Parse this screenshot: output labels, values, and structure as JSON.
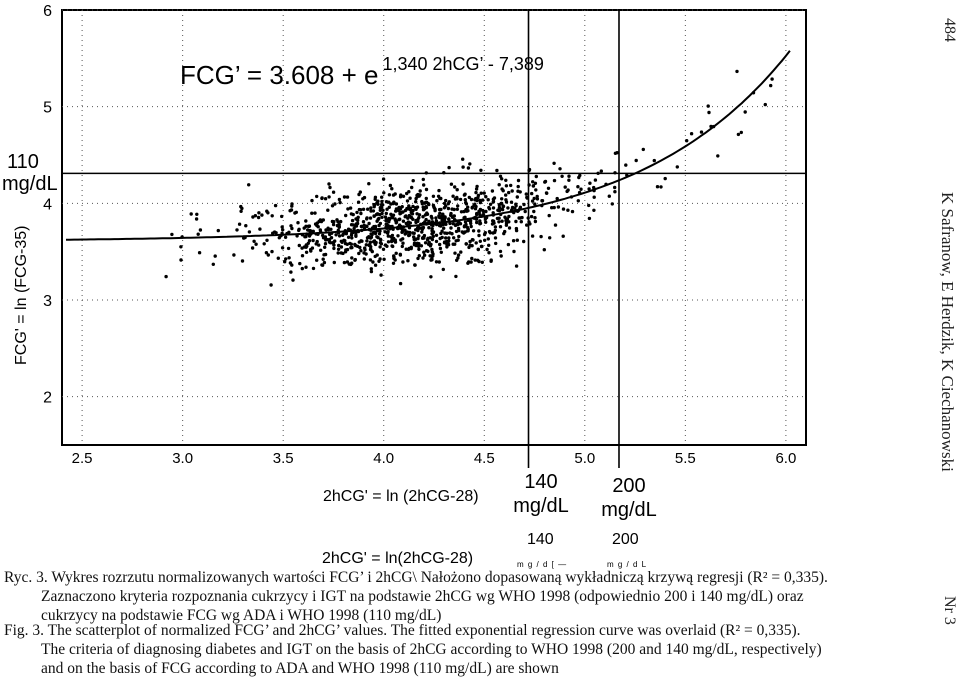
{
  "chart_data": {
    "type": "scatter",
    "formula": {
      "left": "FCG’ = 3.608 + e",
      "exponent": "1,340  2hCG’ - 7,389"
    },
    "xlabel": "2hCG' = ln (2hCG-28)",
    "ylabel": "FCG' = ln (FCG-35)",
    "xlim": [
      2.4,
      6.1
    ],
    "ylim": [
      1.5,
      6.0
    ],
    "x_ticks": [
      "2.5",
      "3.0",
      "3.5",
      "4.0",
      "4.5",
      "5.0",
      "5.5",
      "6.0"
    ],
    "y_ticks": [
      "2",
      "3",
      "4",
      "5",
      "6"
    ],
    "hline": {
      "y": 4.31,
      "label_top": "110",
      "label_bottom": "mg/dL"
    },
    "vlines": [
      {
        "x": 4.72,
        "label_top": "140",
        "label_bottom": "mg/dL"
      },
      {
        "x": 5.17,
        "label_top": "200",
        "label_bottom": "mg/dL"
      }
    ],
    "regression": {
      "a": 3.608,
      "b": 1.34,
      "c": -7.389
    },
    "point_count": 1100,
    "seed": 7,
    "grid": "dotted"
  },
  "paper": {
    "page_number": "484",
    "running_head": "K Safranow, E Herdzik, K Ciechanowski",
    "issue": "Nr 3",
    "ghost_values": [
      "140",
      "200"
    ],
    "ghost_xlabel": "2hCG' = ln(2hCG-28)",
    "ghost_units": [
      "m g / d [ —",
      "m g / d L"
    ],
    "caption_pl": {
      "line1": "Ryc. 3.  Wykres rozrzutu normalizowanych wartości FCG’ i 2hCG\\ Nałożono dopasowaną wykładniczą krzywą regresji (R² = 0,335).",
      "line2": "Zaznaczono kryteria rozpoznania cukrzycy i IGT na podstawie 2hCG wg WHO 1998 (odpowiednio 200 i 140 mg/dL) oraz",
      "line3": "cukrzycy na podstawie FCG wg ADA i WHO 1998 (110 mg/dL)"
    },
    "caption_en": {
      "line1": "Fig. 3.  The scatterplot of normalized FCG’ and 2hCG’ values. The fitted exponential regression curve was overlaid (R² = 0,335).",
      "line2": "The criteria of diagnosing diabetes and IGT on the basis of 2hCG according to WHO 1998 (200 and 140 mg/dL, respectively)",
      "line3": "and on the basis of FCG according to ADA and WHO 1998 (110 mg/dL) are shown"
    }
  }
}
